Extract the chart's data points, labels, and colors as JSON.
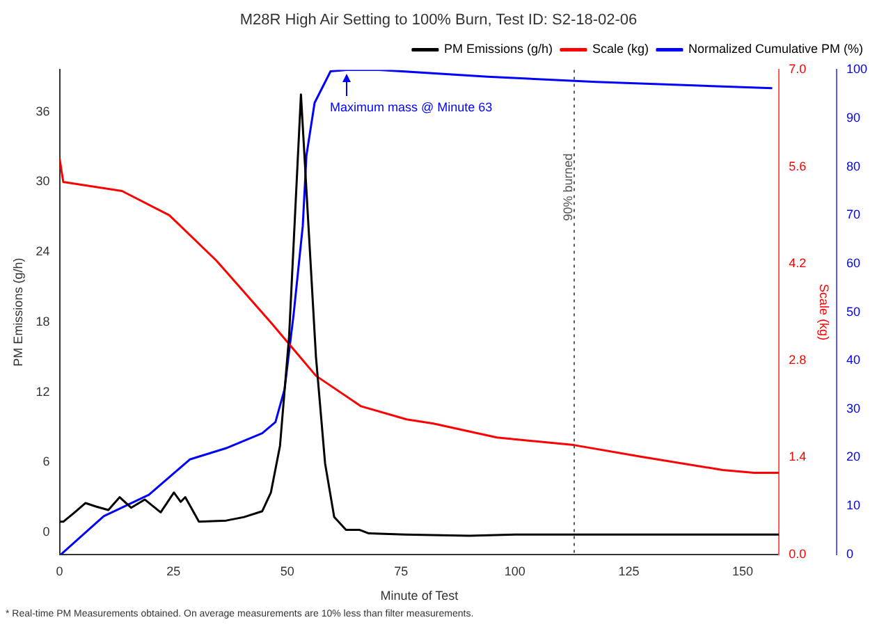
{
  "chart_data": {
    "type": "line",
    "title": "M28R High Air Setting to 100% Burn, Test ID: S2-18-02-06",
    "xlabel": "Minute of Test",
    "ylabel": "PM Emissions (g/h)",
    "y2label": "Scale (kg)",
    "xlim": [
      0,
      158
    ],
    "xticks": [
      0,
      25,
      50,
      75,
      100,
      125,
      150
    ],
    "ylim": [
      -1.9,
      39.6
    ],
    "yticks": [
      0,
      6,
      12,
      18,
      24,
      30,
      36
    ],
    "y2lim": [
      0,
      7
    ],
    "y2ticks": [
      {
        "value": 0,
        "label": "0.0"
      },
      {
        "value": 1.4,
        "label": "1.4"
      },
      {
        "value": 2.8,
        "label": "2.8"
      },
      {
        "value": 4.2,
        "label": "4.2"
      },
      {
        "value": 5.6,
        "label": "5.6"
      },
      {
        "value": 7,
        "label": "7.0"
      }
    ],
    "y3lim": [
      0,
      100
    ],
    "y3ticks": [
      0,
      10,
      20,
      30,
      40,
      50,
      60,
      70,
      80,
      90,
      100
    ],
    "legend": "top right",
    "marker": "none",
    "line_style": "solid",
    "grid": false,
    "series": [
      {
        "name": "PM Emissions (g/h)",
        "color": "#000000",
        "x": [
          0,
          0.8,
          3,
          5.7,
          8,
          10.7,
          13.2,
          15.7,
          18.7,
          22.2,
          25.1,
          26.6,
          27.6,
          30.6,
          36.6,
          40.5,
          44.5,
          46.4,
          48.4,
          50.4,
          53,
          56.3,
          58.3,
          60.3,
          62.9,
          65.9,
          67.9,
          75.8,
          90,
          100,
          113,
          125,
          140,
          158
        ],
        "values": [
          0.9,
          0.9,
          1.6,
          2.5,
          2.2,
          1.9,
          3.0,
          2.1,
          2.8,
          1.7,
          3.4,
          2.6,
          3.0,
          0.9,
          1.0,
          1.3,
          1.8,
          3.4,
          7.4,
          16.8,
          37.5,
          15,
          5.9,
          1.3,
          0.2,
          0.2,
          -0.1,
          -0.2,
          -0.3,
          -0.2,
          -0.2,
          -0.2,
          -0.2,
          -0.2
        ]
      },
      {
        "name": "Scale (kg)",
        "color": "#ff0000",
        "axis": "y2",
        "x": [
          0,
          0.8,
          13.7,
          24.1,
          34.5,
          46.4,
          56.3,
          66.2,
          76.2,
          82.1,
          96,
          112.9,
          127.8,
          145.6,
          152.5,
          158
        ],
        "values": [
          5.72,
          5.38,
          5.25,
          4.9,
          4.24,
          3.35,
          2.58,
          2.14,
          1.95,
          1.89,
          1.69,
          1.58,
          1.41,
          1.22,
          1.18,
          1.18
        ]
      },
      {
        "name": "Normalized Cumulative PM (%)",
        "color": "#0000ff",
        "axis": "y3",
        "x": [
          0.3,
          9.7,
          19.6,
          28.6,
          36.5,
          44.5,
          47.4,
          49.4,
          51.4,
          53.4,
          54.2,
          56,
          59.5,
          63,
          70.2,
          94,
          117.9,
          156.5
        ],
        "values": [
          0,
          7.9,
          12.3,
          19.6,
          21.9,
          25,
          27.3,
          34.1,
          49.6,
          67.8,
          82.3,
          93.2,
          99.7,
          100,
          100,
          98.6,
          97.5,
          96.2
        ]
      }
    ],
    "ref_lines": [
      {
        "axis": "x",
        "value": 113,
        "label": "90% burned",
        "color": "#555555",
        "line_style": "dotted"
      }
    ],
    "annotations": [
      "Maximum mass @ Minute 63",
      "* Real-time PM Measurements obtained. On average measurements are 10% less than filter measurements."
    ]
  }
}
